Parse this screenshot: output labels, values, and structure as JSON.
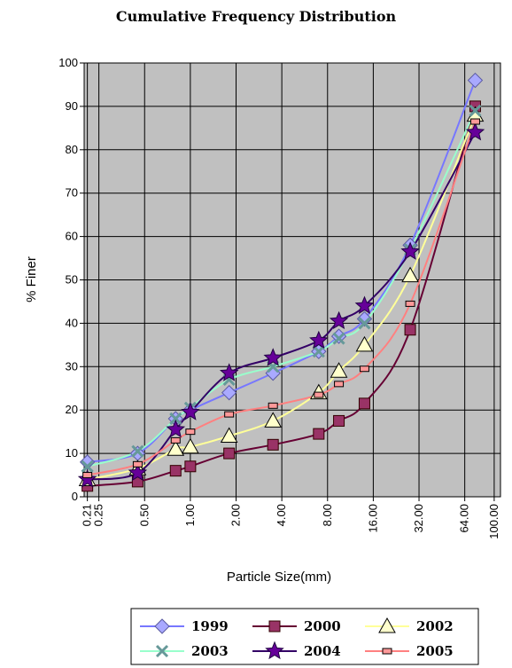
{
  "chart_data": {
    "type": "line",
    "title": "Cumulative Frequency Distribution",
    "xlabel": "Particle Size(mm)",
    "ylabel": "% Finer",
    "x_scale": "log",
    "ylim": [
      0,
      100
    ],
    "y_ticks": [
      0,
      10,
      20,
      30,
      40,
      50,
      60,
      70,
      80,
      90,
      100
    ],
    "x_ticks": [
      {
        "value": 0.21,
        "label": "0.21"
      },
      {
        "value": 0.25,
        "label": "0.25"
      },
      {
        "value": 0.5,
        "label": "0.50"
      },
      {
        "value": 1.0,
        "label": "1.00"
      },
      {
        "value": 2.0,
        "label": "2.00"
      },
      {
        "value": 4.0,
        "label": "4.00"
      },
      {
        "value": 8.0,
        "label": "8.00"
      },
      {
        "value": 16.0,
        "label": "16.00"
      },
      {
        "value": 32.0,
        "label": "32.00"
      },
      {
        "value": 64.0,
        "label": "64.00"
      },
      {
        "value": 100.0,
        "label": "100.00"
      }
    ],
    "grid": true,
    "legend_position": "bottom",
    "series": [
      {
        "name": "1999",
        "color": "#7777ff",
        "marker": "diamond",
        "marker_color": "#a9a9ff",
        "x": [
          0.21,
          0.45,
          0.8,
          1.0,
          1.8,
          3.5,
          7.0,
          9.5,
          14.0,
          28.0,
          75.0
        ],
        "y": [
          8,
          10,
          18,
          20,
          24,
          28.5,
          33.5,
          37,
          41,
          58,
          96
        ]
      },
      {
        "name": "2000",
        "color": "#660033",
        "marker": "square",
        "marker_color": "#993366",
        "x": [
          0.21,
          0.45,
          0.8,
          1.0,
          1.8,
          3.5,
          7.0,
          9.5,
          14.0,
          28.0,
          75.0
        ],
        "y": [
          2.5,
          3.5,
          6,
          7,
          10,
          12,
          14.5,
          17.5,
          21.5,
          38.5,
          90
        ]
      },
      {
        "name": "2002",
        "color": "#ffff99",
        "marker": "triangle",
        "marker_color": "#ffffcc",
        "x": [
          0.21,
          0.45,
          0.8,
          1.0,
          1.8,
          3.5,
          7.0,
          9.5,
          14.0,
          28.0,
          75.0
        ],
        "y": [
          4,
          6.5,
          11,
          11.5,
          14,
          17.5,
          24,
          29,
          35,
          51,
          88
        ]
      },
      {
        "name": "2003",
        "color": "#99ffcc",
        "marker": "x",
        "marker_color": "#669999",
        "x": [
          0.21,
          0.45,
          0.8,
          1.0,
          1.8,
          3.5,
          7.0,
          9.5,
          14.0,
          28.0,
          75.0
        ],
        "y": [
          7,
          10.5,
          18,
          20.5,
          27,
          30,
          33.5,
          36.5,
          40,
          57,
          89
        ]
      },
      {
        "name": "2004",
        "color": "#330066",
        "marker": "star",
        "marker_color": "#660099",
        "x": [
          0.21,
          0.45,
          0.8,
          1.0,
          1.8,
          3.5,
          7.0,
          9.5,
          14.0,
          28.0,
          75.0
        ],
        "y": [
          4,
          5.5,
          15.5,
          19.5,
          28.5,
          32,
          36,
          40.5,
          44,
          56.5,
          84
        ]
      },
      {
        "name": "2005",
        "color": "#ff8080",
        "marker": "dash",
        "marker_color": "#ff9999",
        "x": [
          0.21,
          0.45,
          0.8,
          1.0,
          1.8,
          3.5,
          7.0,
          9.5,
          14.0,
          28.0,
          75.0
        ],
        "y": [
          5,
          7.5,
          13,
          15,
          19,
          21,
          23.5,
          26,
          29.5,
          44.5,
          86.5
        ]
      }
    ]
  }
}
